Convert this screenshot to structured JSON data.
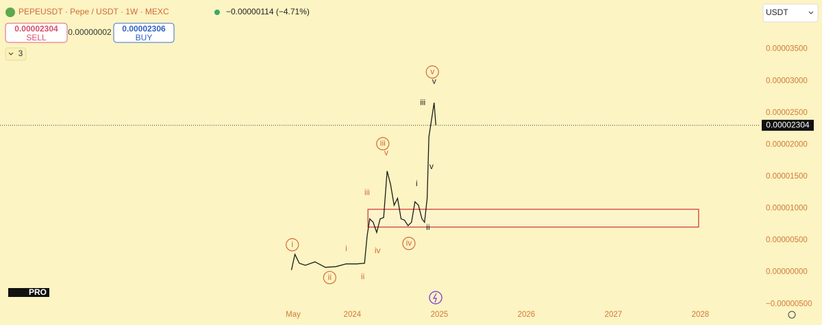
{
  "header": {
    "symbol": "PEPEUSDT · Pepe / USDT · 1W · MEXC",
    "change": "−0.00000114 (−4.71%)",
    "sell_price": "0.00002304",
    "sell_label": "SELL",
    "spread": "0.00000002",
    "buy_price": "0.00002306",
    "buy_label": "BUY",
    "indicator_count": "3",
    "currency": "USDT",
    "logo_badge": "PRO"
  },
  "chart_data": {
    "type": "line",
    "x": [
      2023.3,
      2023.34,
      2023.39,
      2023.46,
      2023.57,
      2023.69,
      2023.81,
      2023.93,
      2024.05,
      2024.14,
      2024.17,
      2024.2,
      2024.24,
      2024.28,
      2024.32,
      2024.36,
      2024.4,
      2024.44,
      2024.48,
      2024.52,
      2024.56,
      2024.6,
      2024.64,
      2024.68,
      2024.72,
      2024.76,
      2024.8,
      2024.83,
      2024.86,
      2024.88,
      2024.91,
      2024.94,
      2024.96
    ],
    "series": [
      {
        "color": "#1a1a1a",
        "values": [
          3.2e-07,
          2.79e-06,
          1.39e-06,
          1.07e-06,
          1.61e-06,
          7.5e-07,
          8.6e-07,
          1.29e-06,
          1.29e-06,
          1.39e-06,
          5.68e-06,
          8.36e-06,
          7.82e-06,
          6.22e-06,
          8.36e-06,
          8.57e-06,
          1.586e-05,
          1.372e-05,
          1.05e-05,
          1.158e-05,
          8.36e-06,
          8.15e-06,
          7.29e-06,
          7.82e-06,
          1.104e-05,
          1.05e-05,
          8.36e-06,
          7.82e-06,
          1.158e-05,
          2.122e-05,
          2.39e-05,
          2.658e-05,
          2.304e-05
        ]
      }
    ],
    "xlim": [
      2019.95,
      2028.69
    ],
    "ylim": [
      -8.3e-06,
      4.27e-05
    ],
    "xticks": [
      {
        "value": 2023.32,
        "label": "May"
      },
      2024,
      2025,
      2026,
      2027,
      2028
    ],
    "yticks": [
      {
        "value": 3.5e-05,
        "label": "0.00003500"
      },
      {
        "value": 3e-05,
        "label": "0.00003000"
      },
      {
        "value": 2.5e-05,
        "label": "0.00002500"
      },
      {
        "value": 2e-05,
        "label": "0.00002000"
      },
      {
        "value": 1.5e-05,
        "label": "0.00001500"
      },
      {
        "value": 1e-05,
        "label": "0.00001000"
      },
      {
        "value": 5e-06,
        "label": "0.00000500"
      },
      {
        "value": 0,
        "label": "0.00000000"
      },
      {
        "value": -5e-06,
        "label": "−0.00000500"
      }
    ],
    "last_price": 2.304e-05,
    "zone": {
      "x": [
        2024.18,
        2027.98
      ],
      "y": [
        7.07e-06,
        9.86e-06
      ],
      "color": "#d9534f"
    },
    "annotations": [
      {
        "text": "i",
        "x": 2023.31,
        "y": 4.29e-06,
        "circled": true,
        "color": "#d2693a"
      },
      {
        "text": "ii",
        "x": 2023.74,
        "y": -8.6e-07,
        "circled": true,
        "color": "#d2693a"
      },
      {
        "text": "i",
        "x": 2023.93,
        "y": 3.64e-06,
        "circled": false,
        "color": "#d2693a"
      },
      {
        "text": "ii",
        "x": 2024.12,
        "y": -7.5e-07,
        "circled": false,
        "color": "#d2693a"
      },
      {
        "text": "iii",
        "x": 2024.17,
        "y": 1.243e-05,
        "circled": false,
        "color": "#d2693a"
      },
      {
        "text": "iii",
        "x": 2024.35,
        "y": 2.015e-05,
        "circled": true,
        "color": "#d2693a"
      },
      {
        "text": "v",
        "x": 2024.39,
        "y": 1.865e-05,
        "circled": false,
        "color": "#d2693a"
      },
      {
        "text": "iv",
        "x": 2024.29,
        "y": 3.32e-06,
        "circled": false,
        "color": "#d2693a"
      },
      {
        "text": "iv",
        "x": 2024.65,
        "y": 4.5e-06,
        "circled": true,
        "color": "#d2693a"
      },
      {
        "text": "i",
        "x": 2024.74,
        "y": 1.383e-05,
        "circled": false,
        "color": "#1a1a1a"
      },
      {
        "text": "ii",
        "x": 2024.87,
        "y": 6.97e-06,
        "circled": false,
        "color": "#1a1a1a"
      },
      {
        "text": "iii",
        "x": 2024.81,
        "y": 2.658e-05,
        "circled": false,
        "color": "#1a1a1a"
      },
      {
        "text": "v",
        "x": 2024.91,
        "y": 1.651e-05,
        "circled": false,
        "color": "#1a1a1a"
      },
      {
        "text": "v",
        "x": 2024.92,
        "y": 3.14e-05,
        "circled": true,
        "color": "#d2693a"
      },
      {
        "text": "v",
        "x": 2024.94,
        "y": 2.99e-05,
        "circled": false,
        "color": "#1a1a1a"
      }
    ]
  }
}
